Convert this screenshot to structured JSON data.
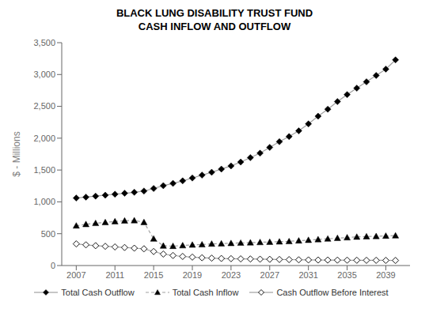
{
  "chart_data": {
    "type": "line",
    "title": "BLACK LUNG DISABILITY TRUST FUND",
    "subtitle": "CASH INFLOW AND OUTFLOW",
    "y_label": "$ - Millions",
    "x": [
      2007,
      2008,
      2009,
      2010,
      2011,
      2012,
      2013,
      2014,
      2015,
      2016,
      2017,
      2018,
      2019,
      2020,
      2021,
      2022,
      2023,
      2024,
      2025,
      2026,
      2027,
      2028,
      2029,
      2030,
      2031,
      2032,
      2033,
      2034,
      2035,
      2036,
      2037,
      2038,
      2039,
      2040
    ],
    "series": [
      {
        "name": "Total Cash Outflow",
        "color": "#a0a0a0",
        "marker": "diamond",
        "line_style": "solid",
        "values": [
          1060,
          1075,
          1090,
          1105,
          1120,
          1135,
          1150,
          1170,
          1210,
          1255,
          1290,
          1330,
          1375,
          1420,
          1465,
          1515,
          1565,
          1625,
          1695,
          1765,
          1855,
          1945,
          2025,
          2115,
          2225,
          2345,
          2455,
          2575,
          2685,
          2785,
          2885,
          2985,
          3085,
          3230
        ]
      },
      {
        "name": "Total Cash Inflow",
        "color": "#a0a0a0",
        "marker": "triangle",
        "line_style": "dashed",
        "values": [
          625,
          648,
          665,
          678,
          692,
          703,
          708,
          680,
          420,
          310,
          305,
          315,
          325,
          330,
          340,
          345,
          350,
          355,
          360,
          365,
          370,
          375,
          380,
          390,
          400,
          410,
          420,
          430,
          440,
          450,
          455,
          460,
          465,
          470
        ]
      },
      {
        "name": "Cash Outflow Before Interest",
        "color": "#a0a0a0",
        "marker": "open_diamond",
        "line_style": "solid",
        "values": [
          340,
          325,
          312,
          302,
          292,
          283,
          273,
          263,
          220,
          180,
          158,
          143,
          132,
          122,
          116,
          111,
          108,
          105,
          103,
          100,
          98,
          95,
          93,
          90,
          88,
          87,
          86,
          85,
          84,
          83,
          82,
          82,
          81,
          80
        ]
      }
    ],
    "xlim": [
      2005.5,
      2041.5
    ],
    "xticks": [
      2007,
      2011,
      2015,
      2019,
      2023,
      2027,
      2031,
      2035,
      2039
    ],
    "ylim": [
      0,
      3500
    ],
    "yticks": [
      0,
      500,
      {
        "value": 1000,
        "label": "1,000"
      },
      {
        "value": 1500,
        "label": "1,500"
      },
      {
        "value": 2000,
        "label": "2,000"
      },
      {
        "value": 2500,
        "label": "2,500"
      },
      {
        "value": 3000,
        "label": "3,000"
      },
      {
        "value": 3500,
        "label": "3,500"
      }
    ],
    "grid": false,
    "legend": "bottom"
  }
}
